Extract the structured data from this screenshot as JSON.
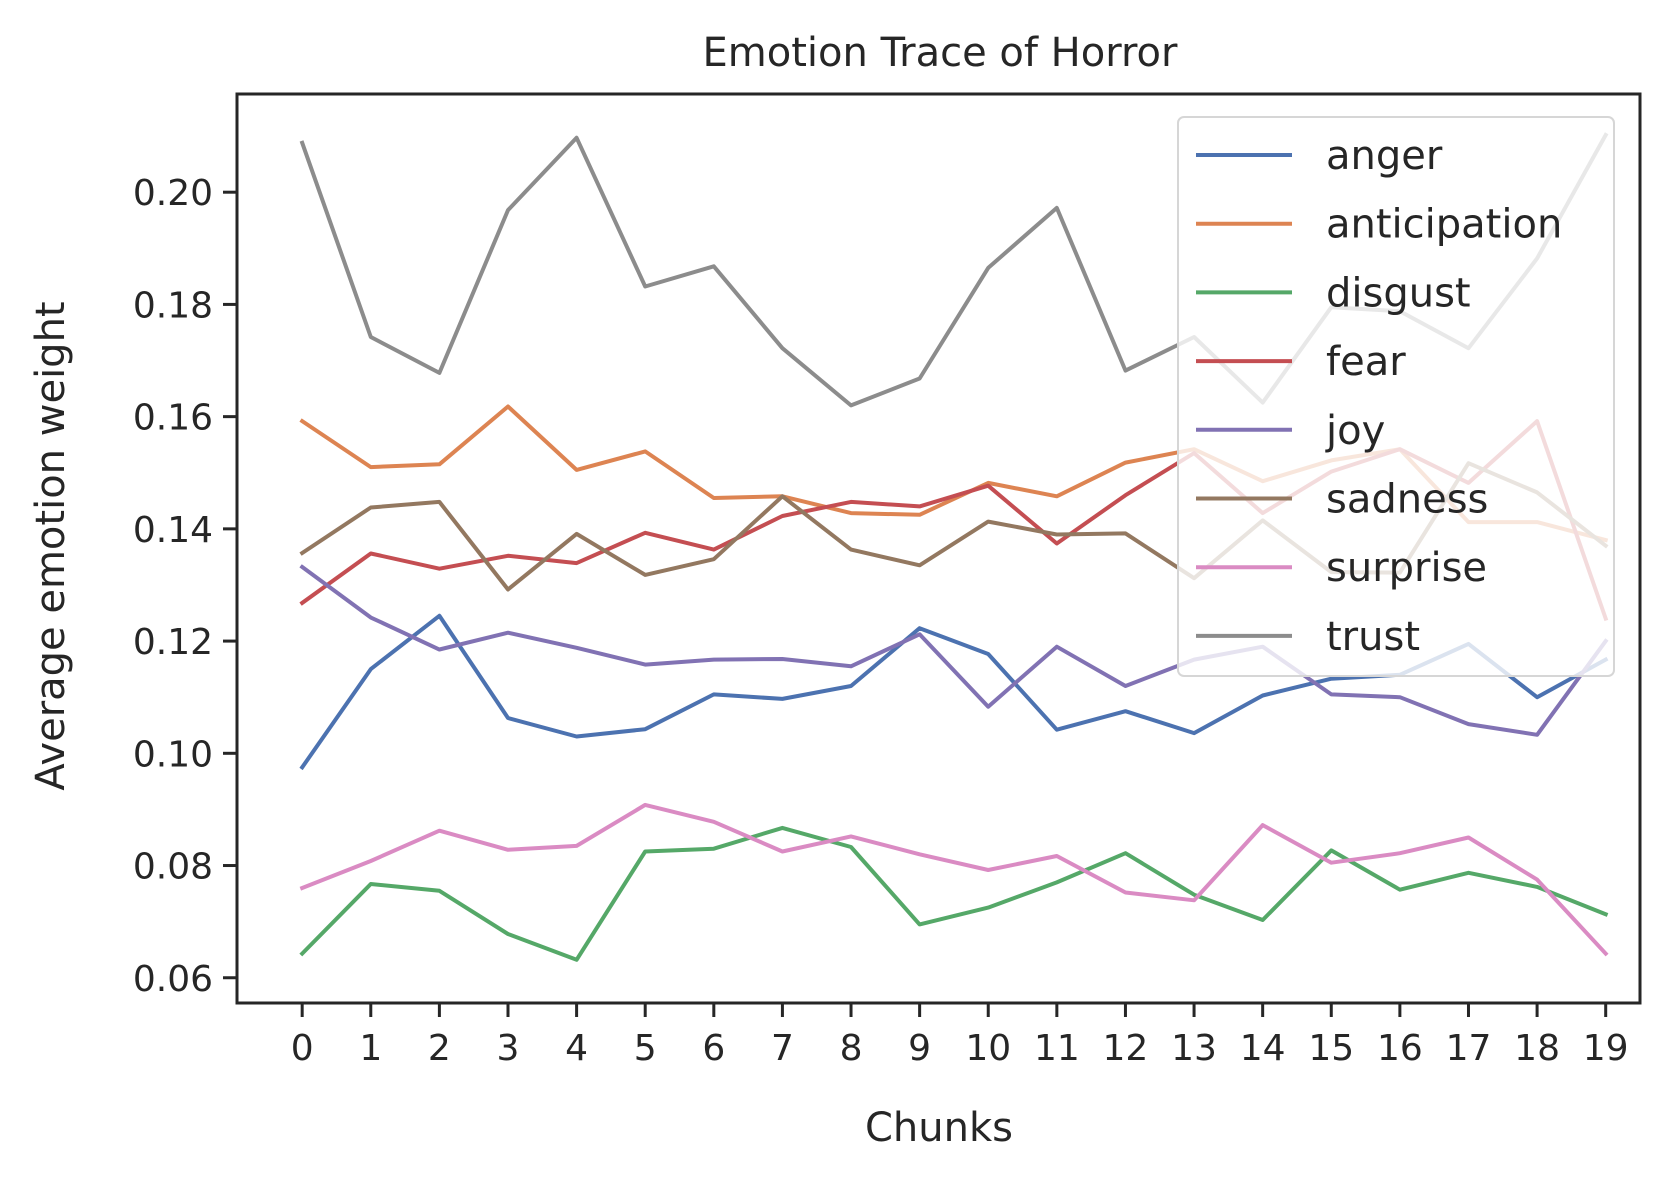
{
  "chart_data": {
    "type": "line",
    "title": "Emotion Trace of Horror",
    "xlabel": "Chunks",
    "ylabel": "Average emotion weight",
    "x": [
      0,
      1,
      2,
      3,
      4,
      5,
      6,
      7,
      8,
      9,
      10,
      11,
      12,
      13,
      14,
      15,
      16,
      17,
      18,
      19
    ],
    "x_ticks": [
      "0",
      "1",
      "2",
      "3",
      "4",
      "5",
      "6",
      "7",
      "8",
      "9",
      "10",
      "11",
      "12",
      "13",
      "14",
      "15",
      "16",
      "17",
      "18",
      "19"
    ],
    "y_ticks": [
      "0.06",
      "0.08",
      "0.10",
      "0.12",
      "0.14",
      "0.16",
      "0.18",
      "0.20"
    ],
    "xlim": [
      -0.95,
      19.5
    ],
    "ylim": [
      0.0555,
      0.2175
    ],
    "grid": false,
    "legend_position": "top-right",
    "series": [
      {
        "name": "anger",
        "color": "#4c72b0",
        "values": [
          0.0975,
          0.115,
          0.1245,
          0.1063,
          0.103,
          0.1043,
          0.1105,
          0.1097,
          0.112,
          0.1223,
          0.1177,
          0.1042,
          0.1075,
          0.1036,
          0.1103,
          0.1133,
          0.114,
          0.1195,
          0.11,
          0.1167
        ]
      },
      {
        "name": "anticipation",
        "color": "#dd8452",
        "values": [
          0.1592,
          0.151,
          0.1515,
          0.1618,
          0.1505,
          0.1538,
          0.1455,
          0.1458,
          0.1428,
          0.1425,
          0.1482,
          0.1458,
          0.1518,
          0.1542,
          0.1485,
          0.1522,
          0.1542,
          0.1412,
          0.1412,
          0.138
        ]
      },
      {
        "name": "disgust",
        "color": "#55a868",
        "values": [
          0.0643,
          0.0767,
          0.0755,
          0.0678,
          0.0632,
          0.0825,
          0.083,
          0.0867,
          0.0833,
          0.0695,
          0.0725,
          0.077,
          0.0822,
          0.0748,
          0.0703,
          0.0827,
          0.0757,
          0.0787,
          0.0762,
          0.0713
        ]
      },
      {
        "name": "fear",
        "color": "#c44e52",
        "values": [
          0.1268,
          0.1356,
          0.1329,
          0.1352,
          0.1339,
          0.1393,
          0.1363,
          0.1423,
          0.1448,
          0.144,
          0.1477,
          0.1374,
          0.146,
          0.1535,
          0.1428,
          0.1502,
          0.1542,
          0.1482,
          0.1592,
          0.124
        ]
      },
      {
        "name": "joy",
        "color": "#8172b3",
        "values": [
          0.1332,
          0.1242,
          0.1185,
          0.1215,
          0.1188,
          0.1158,
          0.1167,
          0.1168,
          0.1155,
          0.1212,
          0.1083,
          0.119,
          0.112,
          0.1167,
          0.119,
          0.1105,
          0.11,
          0.1052,
          0.1033,
          0.12
        ]
      },
      {
        "name": "sadness",
        "color": "#937860",
        "values": [
          0.1357,
          0.1438,
          0.1448,
          0.1292,
          0.1391,
          0.1318,
          0.1346,
          0.1458,
          0.1363,
          0.1335,
          0.1413,
          0.139,
          0.1392,
          0.1312,
          0.1415,
          0.1323,
          0.1322,
          0.1517,
          0.1465,
          0.137
        ]
      },
      {
        "name": "surprise",
        "color": "#da8bc3",
        "values": [
          0.076,
          0.0808,
          0.0862,
          0.0828,
          0.0835,
          0.0908,
          0.0878,
          0.0825,
          0.0852,
          0.082,
          0.0792,
          0.0817,
          0.0752,
          0.0738,
          0.0872,
          0.0805,
          0.0822,
          0.085,
          0.0775,
          0.0643
        ]
      },
      {
        "name": "trust",
        "color": "#8c8c8c",
        "values": [
          0.2088,
          0.1742,
          0.1678,
          0.1968,
          0.2097,
          0.1832,
          0.1868,
          0.1722,
          0.162,
          0.1668,
          0.1865,
          0.1972,
          0.1682,
          0.1742,
          0.1625,
          0.1795,
          0.1788,
          0.1722,
          0.1882,
          0.2102
        ]
      }
    ]
  }
}
